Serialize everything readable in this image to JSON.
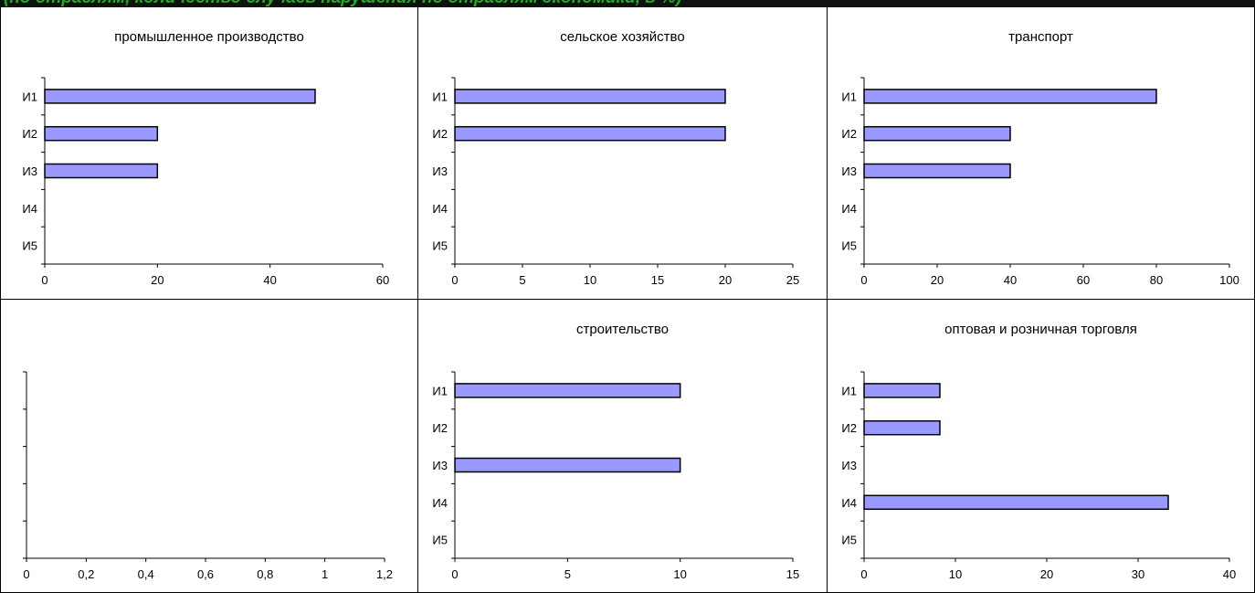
{
  "banner": {
    "text": "(по отраслям, количество случаев нарушения по отраслям экономики, в %)"
  },
  "colors": {
    "bar_fill": "#9999ff",
    "bar_stroke": "#000000",
    "axis": "#000000"
  },
  "chart_data": [
    {
      "type": "bar",
      "orientation": "horizontal",
      "title": "промышленное производство",
      "categories": [
        "И1",
        "И2",
        "И3",
        "И4",
        "И5"
      ],
      "values": [
        48,
        20,
        20,
        0,
        0
      ],
      "xlim": [
        0,
        60
      ],
      "ticks": [
        0,
        20,
        40,
        60
      ],
      "tick_labels": [
        "0",
        "20",
        "40",
        "60"
      ],
      "grid": false
    },
    {
      "type": "bar",
      "orientation": "horizontal",
      "title": "сельское хозяйство",
      "categories": [
        "И1",
        "И2",
        "И3",
        "И4",
        "И5"
      ],
      "values": [
        20,
        20,
        0,
        0,
        0
      ],
      "xlim": [
        0,
        25
      ],
      "ticks": [
        0,
        5,
        10,
        15,
        20,
        25
      ],
      "tick_labels": [
        "0",
        "5",
        "10",
        "15",
        "20",
        "25"
      ],
      "grid": false
    },
    {
      "type": "bar",
      "orientation": "horizontal",
      "title": "транспорт",
      "categories": [
        "И1",
        "И2",
        "И3",
        "И4",
        "И5"
      ],
      "values": [
        80,
        40,
        40,
        0,
        0
      ],
      "xlim": [
        0,
        100
      ],
      "ticks": [
        0,
        20,
        40,
        60,
        80,
        100
      ],
      "tick_labels": [
        "0",
        "20",
        "40",
        "60",
        "80",
        "100"
      ],
      "grid": false
    },
    {
      "type": "bar",
      "orientation": "horizontal",
      "title": "",
      "categories": [
        "",
        "",
        "",
        "",
        ""
      ],
      "values": [
        0,
        0,
        0,
        0,
        0
      ],
      "xlim": [
        0,
        1.2
      ],
      "ticks": [
        0,
        0.2,
        0.4,
        0.6,
        0.8,
        1,
        1.2
      ],
      "tick_labels": [
        "0",
        "0,2",
        "0,4",
        "0,6",
        "0,8",
        "1",
        "1,2"
      ],
      "grid": false
    },
    {
      "type": "bar",
      "orientation": "horizontal",
      "title": "строительство",
      "categories": [
        "И1",
        "И2",
        "И3",
        "И4",
        "И5"
      ],
      "values": [
        10,
        0,
        10,
        0,
        0
      ],
      "xlim": [
        0,
        15
      ],
      "ticks": [
        0,
        5,
        10,
        15
      ],
      "tick_labels": [
        "0",
        "5",
        "10",
        "15"
      ],
      "grid": false
    },
    {
      "type": "bar",
      "orientation": "horizontal",
      "title": "оптовая и розничная торговля",
      "categories": [
        "И1",
        "И2",
        "И3",
        "И4",
        "И5"
      ],
      "values": [
        8.3,
        8.3,
        0,
        33.3,
        0
      ],
      "xlim": [
        0,
        40
      ],
      "ticks": [
        0,
        10,
        20,
        30,
        40
      ],
      "tick_labels": [
        "0",
        "10",
        "20",
        "30",
        "40"
      ],
      "grid": false
    }
  ]
}
